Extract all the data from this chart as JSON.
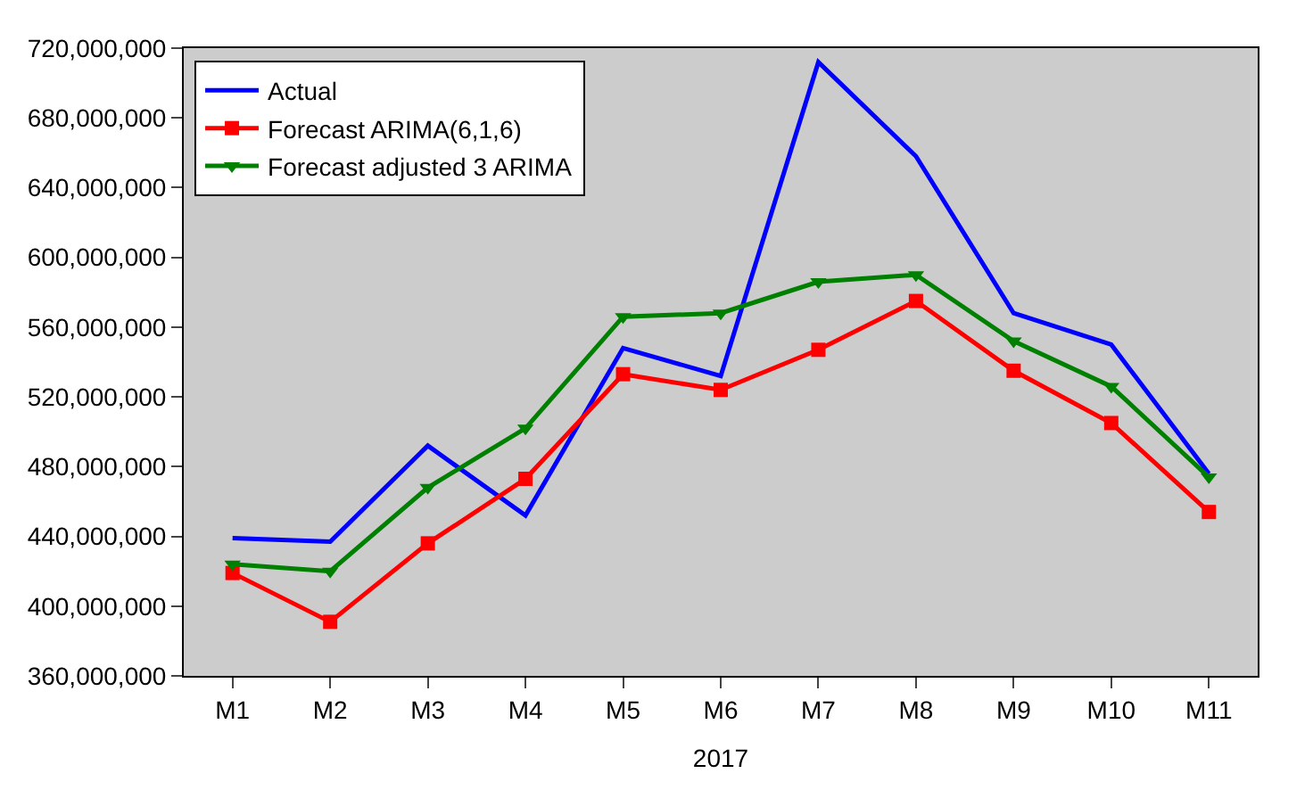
{
  "chart_data": {
    "type": "line",
    "xlabel": "2017",
    "categories": [
      "M1",
      "M2",
      "M3",
      "M4",
      "M5",
      "M6",
      "M7",
      "M8",
      "M9",
      "M10",
      "M11"
    ],
    "series": [
      {
        "name": "Actual",
        "color": "#0000ff",
        "marker": "none",
        "values": [
          439000000,
          437000000,
          492000000,
          452000000,
          548000000,
          532000000,
          712000000,
          658000000,
          568000000,
          550000000,
          476000000
        ]
      },
      {
        "name": "Forecast ARIMA(6,1,6)",
        "color": "#ff0000",
        "marker": "square",
        "values": [
          419000000,
          391000000,
          436000000,
          473000000,
          533000000,
          524000000,
          547000000,
          575000000,
          535000000,
          505000000,
          454000000
        ]
      },
      {
        "name": "Forecast adjusted 3 ARIMA",
        "color": "#008000",
        "marker": "triangle",
        "values": [
          424000000,
          420000000,
          468000000,
          502000000,
          566000000,
          568000000,
          586000000,
          590000000,
          552000000,
          526000000,
          474000000
        ]
      }
    ],
    "ylim": [
      360000000,
      720000000
    ],
    "yticks": [
      {
        "value": 360000000,
        "label": "360,000,000"
      },
      {
        "value": 400000000,
        "label": "400,000,000"
      },
      {
        "value": 440000000,
        "label": "440,000,000"
      },
      {
        "value": 480000000,
        "label": "480,000,000"
      },
      {
        "value": 520000000,
        "label": "520,000,000"
      },
      {
        "value": 560000000,
        "label": "560,000,000"
      },
      {
        "value": 600000000,
        "label": "600,000,000"
      },
      {
        "value": 640000000,
        "label": "640,000,000"
      },
      {
        "value": 680000000,
        "label": "680,000,000"
      },
      {
        "value": 720000000,
        "label": "720,000,000"
      }
    ],
    "grid": false,
    "legend": "top left"
  }
}
